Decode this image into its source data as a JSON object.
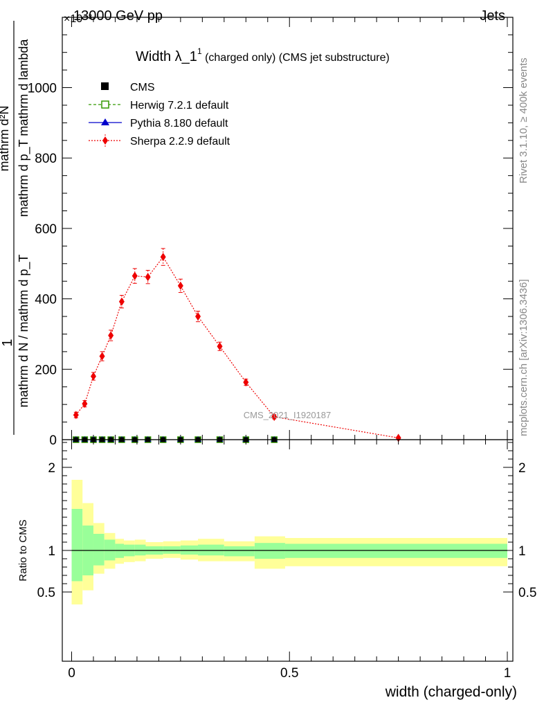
{
  "header": {
    "left": "13000 GeV pp",
    "right": "Jets"
  },
  "side": {
    "rivet": "Rivet 3.1.10, ≥ 400k events",
    "mcplots": "mcplots.cern.ch [arXiv:1306.3436]"
  },
  "colors": {
    "herwig": "#339900",
    "pythia": "#0000cc",
    "sherpa": "#ee0000",
    "band_inner": "#99ff99",
    "band_outer": "#ffff99",
    "watermark": "#999999"
  },
  "chart_data": [
    {
      "type": "scatter",
      "title_main": "Width λ_1",
      "title_sup": "1",
      "title_rest": " (charged only) (CMS jet substructure)",
      "ylabel": {
        "num": "mathrm d²N",
        "den": "mathrm d p_T mathrm d lambda",
        "one": "1",
        "pre": "mathrm d N / mathrm d p_T"
      },
      "y_multiplier": "×10⁻³",
      "watermark": "CMS_2021_I1920187",
      "xlim": [
        -0.01,
        1.01
      ],
      "ylim": [
        0,
        1180
      ],
      "y_ticks": [
        0,
        200,
        400,
        600,
        800,
        1000
      ],
      "x_ticks": [
        0,
        0.5,
        1
      ],
      "legend_position": "top-left",
      "legend": [
        {
          "key": "cms",
          "label": "CMS"
        },
        {
          "key": "herwig",
          "label": "Herwig 7.2.1 default"
        },
        {
          "key": "pythia",
          "label": "Pythia 8.180 default"
        },
        {
          "key": "sherpa",
          "label": "Sherpa 2.2.9 default"
        }
      ],
      "bin_edges": [
        0,
        0.02,
        0.04,
        0.06,
        0.08,
        0.1,
        0.13,
        0.16,
        0.19,
        0.23,
        0.27,
        0.31,
        0.37,
        0.43,
        0.5,
        1.0
      ],
      "sherpa": {
        "x": [
          0.01,
          0.03,
          0.05,
          0.07,
          0.09,
          0.115,
          0.145,
          0.175,
          0.21,
          0.25,
          0.29,
          0.34,
          0.4,
          0.465,
          0.75
        ],
        "y": [
          70,
          102,
          180,
          237,
          296,
          392,
          465,
          462,
          519,
          437,
          350,
          265,
          163,
          65,
          5
        ],
        "yerr": [
          8,
          9,
          11,
          13,
          15,
          18,
          21,
          19,
          24,
          19,
          15,
          12,
          9,
          6,
          3
        ]
      },
      "cms_x": [
        0.01,
        0.03,
        0.05,
        0.07,
        0.09,
        0.115,
        0.145,
        0.175,
        0.21,
        0.25,
        0.29,
        0.34,
        0.4,
        0.465
      ],
      "cms_y": [
        0,
        0,
        0,
        0,
        0,
        0,
        0,
        0,
        0,
        0,
        0,
        0,
        0,
        0
      ]
    },
    {
      "type": "area",
      "ylabel": "Ratio to CMS",
      "xlabel": "width (charged-only)",
      "ylim": [
        0.35,
        2.35
      ],
      "y_ticks": [
        0.5,
        1,
        2
      ],
      "x_ticks": [
        0,
        0.5,
        1
      ],
      "ref_line": 1,
      "bins": [
        {
          "x0": 0.0,
          "x1": 0.025,
          "inner": [
            0.63,
            1.5
          ],
          "outer": [
            0.35,
            1.85
          ]
        },
        {
          "x0": 0.025,
          "x1": 0.05,
          "inner": [
            0.7,
            1.3
          ],
          "outer": [
            0.52,
            1.57
          ]
        },
        {
          "x0": 0.05,
          "x1": 0.075,
          "inner": [
            0.82,
            1.2
          ],
          "outer": [
            0.72,
            1.33
          ]
        },
        {
          "x0": 0.075,
          "x1": 0.1,
          "inner": [
            0.88,
            1.13
          ],
          "outer": [
            0.78,
            1.21
          ]
        },
        {
          "x0": 0.1,
          "x1": 0.12,
          "inner": [
            0.91,
            1.08
          ],
          "outer": [
            0.84,
            1.14
          ]
        },
        {
          "x0": 0.12,
          "x1": 0.145,
          "inner": [
            0.93,
            1.07
          ],
          "outer": [
            0.86,
            1.12
          ]
        },
        {
          "x0": 0.145,
          "x1": 0.17,
          "inner": [
            0.94,
            1.07
          ],
          "outer": [
            0.87,
            1.13
          ]
        },
        {
          "x0": 0.17,
          "x1": 0.21,
          "inner": [
            0.95,
            1.05
          ],
          "outer": [
            0.9,
            1.1
          ]
        },
        {
          "x0": 0.21,
          "x1": 0.25,
          "inner": [
            0.96,
            1.05
          ],
          "outer": [
            0.91,
            1.11
          ]
        },
        {
          "x0": 0.25,
          "x1": 0.29,
          "inner": [
            0.95,
            1.06
          ],
          "outer": [
            0.89,
            1.12
          ]
        },
        {
          "x0": 0.29,
          "x1": 0.35,
          "inner": [
            0.94,
            1.07
          ],
          "outer": [
            0.87,
            1.14
          ]
        },
        {
          "x0": 0.35,
          "x1": 0.42,
          "inner": [
            0.93,
            1.05
          ],
          "outer": [
            0.87,
            1.11
          ]
        },
        {
          "x0": 0.42,
          "x1": 0.49,
          "inner": [
            0.9,
            1.09
          ],
          "outer": [
            0.78,
            1.17
          ]
        },
        {
          "x0": 0.49,
          "x1": 1.0,
          "inner": [
            0.91,
            1.08
          ],
          "outer": [
            0.81,
            1.15
          ]
        }
      ]
    }
  ]
}
